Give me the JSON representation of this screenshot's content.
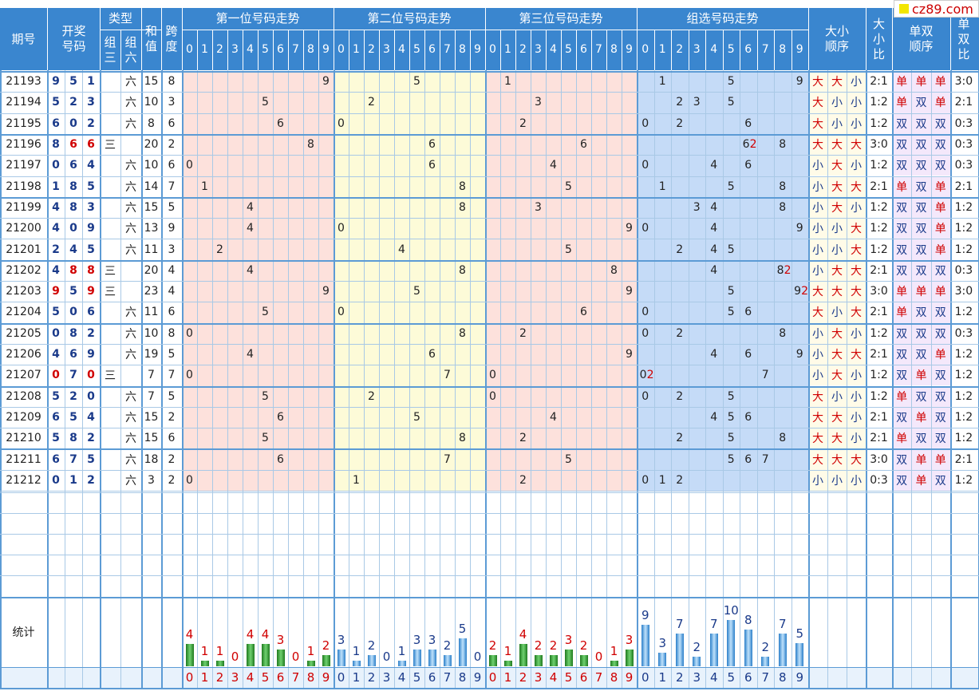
{
  "watermark": "cz89.com",
  "colors": {
    "header": "#3a86cf",
    "pos1": "#fde1dc",
    "pos2": "#fdfbd8",
    "pos3": "#fde1dc",
    "group": "#c5dbf7",
    "grid": "#a9c9e6",
    "red": "#d00000",
    "blue": "#1a3a8a",
    "green": "#2e8b2e"
  },
  "headers": {
    "period": "期号",
    "draw": [
      "开奖",
      "号码"
    ],
    "type": "类型",
    "type_z3": [
      "组",
      "三"
    ],
    "type_z6": [
      "组",
      "六"
    ],
    "sum": [
      "和",
      "值"
    ],
    "span": [
      "跨",
      "度"
    ],
    "pos1": "第一位号码走势",
    "pos2": "第二位号码走势",
    "pos3": "第三位号码走势",
    "group": "组选号码走势",
    "bigsmall_order": [
      "大小",
      "顺序"
    ],
    "bigsmall_ratio": [
      "大",
      "小",
      "比"
    ],
    "oddeven_order": [
      "单双",
      "顺序"
    ],
    "oddeven_ratio": [
      "单",
      "双",
      "比"
    ],
    "digits": [
      "0",
      "1",
      "2",
      "3",
      "4",
      "5",
      "6",
      "7",
      "8",
      "9"
    ],
    "stat_label": "统计"
  },
  "chart_data": {
    "type": "table",
    "rows": [
      {
        "period": "21193",
        "draw": [
          "9",
          "5",
          "1"
        ],
        "z3": "",
        "z6": "六",
        "sum": "15",
        "span": "8",
        "group_marks": [
          "1",
          "5",
          "9"
        ],
        "group_dup": "",
        "bs": [
          "大",
          "大",
          "小"
        ],
        "bs_ratio": "2:1",
        "oe": [
          "单",
          "单",
          "单"
        ],
        "oe_ratio": "3:0"
      },
      {
        "period": "21194",
        "draw": [
          "5",
          "2",
          "3"
        ],
        "z3": "",
        "z6": "六",
        "sum": "10",
        "span": "3",
        "group_marks": [
          "2",
          "3",
          "5"
        ],
        "group_dup": "",
        "bs": [
          "大",
          "小",
          "小"
        ],
        "bs_ratio": "1:2",
        "oe": [
          "单",
          "双",
          "单"
        ],
        "oe_ratio": "2:1"
      },
      {
        "period": "21195",
        "draw": [
          "6",
          "0",
          "2"
        ],
        "z3": "",
        "z6": "六",
        "sum": "8",
        "span": "6",
        "group_marks": [
          "0",
          "2",
          "6"
        ],
        "group_dup": "",
        "bs": [
          "大",
          "小",
          "小"
        ],
        "bs_ratio": "1:2",
        "oe": [
          "双",
          "双",
          "双"
        ],
        "oe_ratio": "0:3"
      },
      {
        "period": "21196",
        "draw": [
          "8",
          "6",
          "6"
        ],
        "z3": "三",
        "z6": "",
        "sum": "20",
        "span": "2",
        "group_marks": [
          "6",
          "8"
        ],
        "group_dup": "6",
        "bs": [
          "大",
          "大",
          "大"
        ],
        "bs_ratio": "3:0",
        "oe": [
          "双",
          "双",
          "双"
        ],
        "oe_ratio": "0:3"
      },
      {
        "period": "21197",
        "draw": [
          "0",
          "6",
          "4"
        ],
        "z3": "",
        "z6": "六",
        "sum": "10",
        "span": "6",
        "group_marks": [
          "0",
          "4",
          "6"
        ],
        "group_dup": "",
        "bs": [
          "小",
          "大",
          "小"
        ],
        "bs_ratio": "1:2",
        "oe": [
          "双",
          "双",
          "双"
        ],
        "oe_ratio": "0:3"
      },
      {
        "period": "21198",
        "draw": [
          "1",
          "8",
          "5"
        ],
        "z3": "",
        "z6": "六",
        "sum": "14",
        "span": "7",
        "group_marks": [
          "1",
          "5",
          "8"
        ],
        "group_dup": "",
        "bs": [
          "小",
          "大",
          "大"
        ],
        "bs_ratio": "2:1",
        "oe": [
          "单",
          "双",
          "单"
        ],
        "oe_ratio": "2:1"
      },
      {
        "period": "21199",
        "draw": [
          "4",
          "8",
          "3"
        ],
        "z3": "",
        "z6": "六",
        "sum": "15",
        "span": "5",
        "group_marks": [
          "3",
          "4",
          "8"
        ],
        "group_dup": "",
        "bs": [
          "小",
          "大",
          "小"
        ],
        "bs_ratio": "1:2",
        "oe": [
          "双",
          "双",
          "单"
        ],
        "oe_ratio": "1:2"
      },
      {
        "period": "21200",
        "draw": [
          "4",
          "0",
          "9"
        ],
        "z3": "",
        "z6": "六",
        "sum": "13",
        "span": "9",
        "group_marks": [
          "0",
          "4",
          "9"
        ],
        "group_dup": "",
        "bs": [
          "小",
          "小",
          "大"
        ],
        "bs_ratio": "1:2",
        "oe": [
          "双",
          "双",
          "单"
        ],
        "oe_ratio": "1:2"
      },
      {
        "period": "21201",
        "draw": [
          "2",
          "4",
          "5"
        ],
        "z3": "",
        "z6": "六",
        "sum": "11",
        "span": "3",
        "group_marks": [
          "2",
          "4",
          "5"
        ],
        "group_dup": "",
        "bs": [
          "小",
          "小",
          "大"
        ],
        "bs_ratio": "1:2",
        "oe": [
          "双",
          "双",
          "单"
        ],
        "oe_ratio": "1:2"
      },
      {
        "period": "21202",
        "draw": [
          "4",
          "8",
          "8"
        ],
        "z3": "三",
        "z6": "",
        "sum": "20",
        "span": "4",
        "group_marks": [
          "4",
          "8"
        ],
        "group_dup": "8",
        "bs": [
          "小",
          "大",
          "大"
        ],
        "bs_ratio": "2:1",
        "oe": [
          "双",
          "双",
          "双"
        ],
        "oe_ratio": "0:3"
      },
      {
        "period": "21203",
        "draw": [
          "9",
          "5",
          "9"
        ],
        "z3": "三",
        "z6": "",
        "sum": "23",
        "span": "4",
        "group_marks": [
          "5",
          "9"
        ],
        "group_dup": "9",
        "bs": [
          "大",
          "大",
          "大"
        ],
        "bs_ratio": "3:0",
        "oe": [
          "单",
          "单",
          "单"
        ],
        "oe_ratio": "3:0"
      },
      {
        "period": "21204",
        "draw": [
          "5",
          "0",
          "6"
        ],
        "z3": "",
        "z6": "六",
        "sum": "11",
        "span": "6",
        "group_marks": [
          "0",
          "5",
          "6"
        ],
        "group_dup": "",
        "bs": [
          "大",
          "小",
          "大"
        ],
        "bs_ratio": "2:1",
        "oe": [
          "单",
          "双",
          "双"
        ],
        "oe_ratio": "1:2"
      },
      {
        "period": "21205",
        "draw": [
          "0",
          "8",
          "2"
        ],
        "z3": "",
        "z6": "六",
        "sum": "10",
        "span": "8",
        "group_marks": [
          "0",
          "2",
          "8"
        ],
        "group_dup": "",
        "bs": [
          "小",
          "大",
          "小"
        ],
        "bs_ratio": "1:2",
        "oe": [
          "双",
          "双",
          "双"
        ],
        "oe_ratio": "0:3"
      },
      {
        "period": "21206",
        "draw": [
          "4",
          "6",
          "9"
        ],
        "z3": "",
        "z6": "六",
        "sum": "19",
        "span": "5",
        "group_marks": [
          "4",
          "6",
          "9"
        ],
        "group_dup": "",
        "bs": [
          "小",
          "大",
          "大"
        ],
        "bs_ratio": "2:1",
        "oe": [
          "双",
          "双",
          "单"
        ],
        "oe_ratio": "1:2"
      },
      {
        "period": "21207",
        "draw": [
          "0",
          "7",
          "0"
        ],
        "z3": "三",
        "z6": "",
        "sum": "7",
        "span": "7",
        "group_marks": [
          "0",
          "7"
        ],
        "group_dup": "0",
        "bs": [
          "小",
          "大",
          "小"
        ],
        "bs_ratio": "1:2",
        "oe": [
          "双",
          "单",
          "双"
        ],
        "oe_ratio": "1:2"
      },
      {
        "period": "21208",
        "draw": [
          "5",
          "2",
          "0"
        ],
        "z3": "",
        "z6": "六",
        "sum": "7",
        "span": "5",
        "group_marks": [
          "0",
          "2",
          "5"
        ],
        "group_dup": "",
        "bs": [
          "大",
          "小",
          "小"
        ],
        "bs_ratio": "1:2",
        "oe": [
          "单",
          "双",
          "双"
        ],
        "oe_ratio": "1:2"
      },
      {
        "period": "21209",
        "draw": [
          "6",
          "5",
          "4"
        ],
        "z3": "",
        "z6": "六",
        "sum": "15",
        "span": "2",
        "group_marks": [
          "4",
          "5",
          "6"
        ],
        "group_dup": "",
        "bs": [
          "大",
          "大",
          "小"
        ],
        "bs_ratio": "2:1",
        "oe": [
          "双",
          "单",
          "双"
        ],
        "oe_ratio": "1:2"
      },
      {
        "period": "21210",
        "draw": [
          "5",
          "8",
          "2"
        ],
        "z3": "",
        "z6": "六",
        "sum": "15",
        "span": "6",
        "group_marks": [
          "2",
          "5",
          "8"
        ],
        "group_dup": "",
        "bs": [
          "大",
          "大",
          "小"
        ],
        "bs_ratio": "2:1",
        "oe": [
          "单",
          "双",
          "双"
        ],
        "oe_ratio": "1:2"
      },
      {
        "period": "21211",
        "draw": [
          "6",
          "7",
          "5"
        ],
        "z3": "",
        "z6": "六",
        "sum": "18",
        "span": "2",
        "group_marks": [
          "5",
          "6",
          "7"
        ],
        "group_dup": "",
        "bs": [
          "大",
          "大",
          "大"
        ],
        "bs_ratio": "3:0",
        "oe": [
          "双",
          "单",
          "单"
        ],
        "oe_ratio": "2:1"
      },
      {
        "period": "21212",
        "draw": [
          "0",
          "1",
          "2"
        ],
        "z3": "",
        "z6": "六",
        "sum": "3",
        "span": "2",
        "group_marks": [
          "0",
          "1",
          "2"
        ],
        "group_dup": "",
        "bs": [
          "小",
          "小",
          "小"
        ],
        "bs_ratio": "0:3",
        "oe": [
          "双",
          "单",
          "双"
        ],
        "oe_ratio": "1:2"
      }
    ],
    "stats": {
      "pos1": [
        4,
        1,
        1,
        0,
        4,
        4,
        3,
        0,
        1,
        2
      ],
      "pos2": [
        3,
        1,
        2,
        0,
        1,
        3,
        3,
        2,
        5,
        0
      ],
      "pos3": [
        2,
        1,
        4,
        2,
        2,
        3,
        2,
        0,
        1,
        3
      ],
      "group": [
        9,
        3,
        7,
        2,
        7,
        10,
        8,
        2,
        7,
        5
      ]
    }
  }
}
